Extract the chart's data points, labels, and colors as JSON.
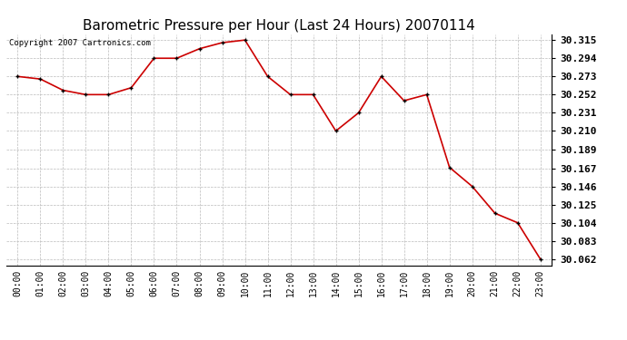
{
  "title": "Barometric Pressure per Hour (Last 24 Hours) 20070114",
  "copyright": "Copyright 2007 Cartronics.com",
  "hours": [
    0,
    1,
    2,
    3,
    4,
    5,
    6,
    7,
    8,
    9,
    10,
    11,
    12,
    13,
    14,
    15,
    16,
    17,
    18,
    19,
    20,
    21,
    22,
    23
  ],
  "x_labels": [
    "00:00",
    "01:00",
    "02:00",
    "03:00",
    "04:00",
    "05:00",
    "06:00",
    "07:00",
    "08:00",
    "09:00",
    "10:00",
    "11:00",
    "12:00",
    "13:00",
    "14:00",
    "15:00",
    "16:00",
    "17:00",
    "18:00",
    "19:00",
    "20:00",
    "21:00",
    "22:00",
    "23:00"
  ],
  "values": [
    30.273,
    30.27,
    30.257,
    30.252,
    30.252,
    30.26,
    30.294,
    30.294,
    30.305,
    30.312,
    30.315,
    30.273,
    30.252,
    30.252,
    30.21,
    30.231,
    30.273,
    30.245,
    30.252,
    30.168,
    30.146,
    30.115,
    30.104,
    30.062
  ],
  "line_color": "#cc0000",
  "marker_color": "#000000",
  "bg_color": "#ffffff",
  "grid_color": "#bbbbbb",
  "ylim_min": 30.055,
  "ylim_max": 30.322,
  "yticks": [
    30.062,
    30.083,
    30.104,
    30.125,
    30.146,
    30.167,
    30.189,
    30.21,
    30.231,
    30.252,
    30.273,
    30.294,
    30.315
  ],
  "title_fontsize": 11,
  "copyright_fontsize": 6.5,
  "xtick_fontsize": 7,
  "ytick_fontsize": 8
}
